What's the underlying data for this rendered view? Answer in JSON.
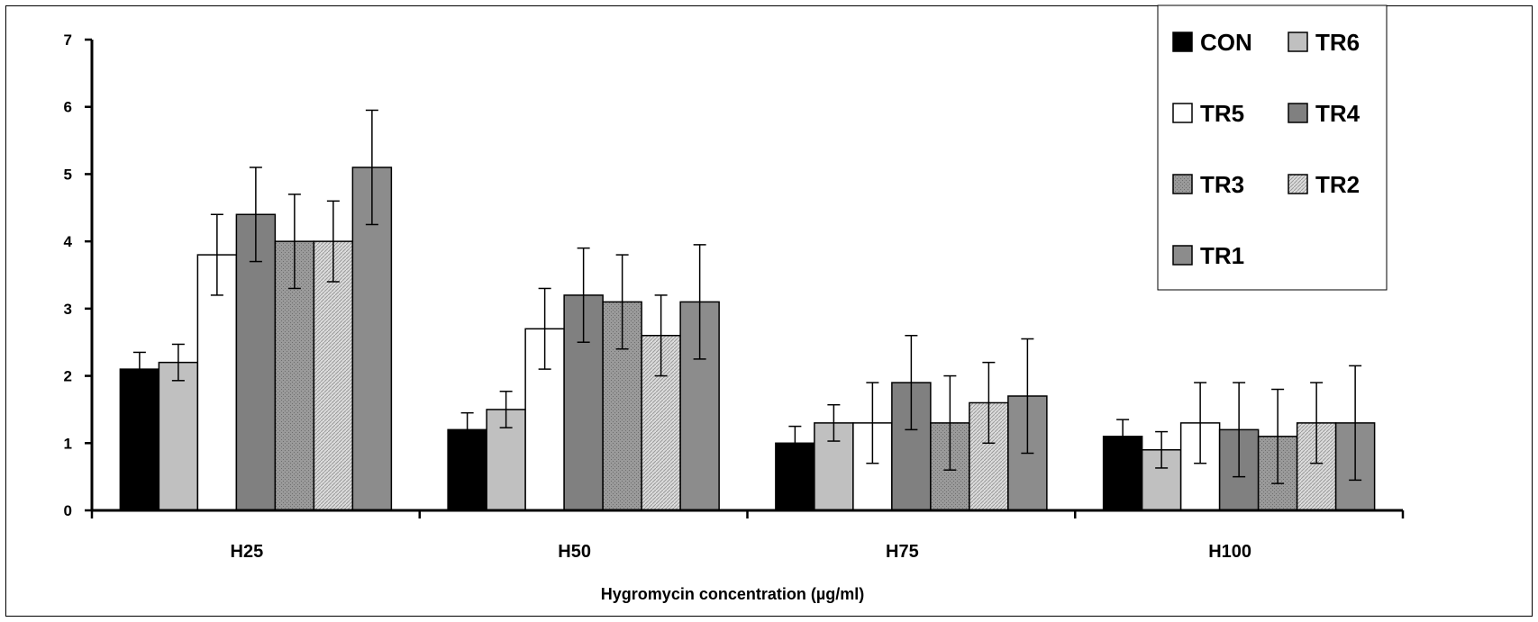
{
  "chart_data": {
    "type": "bar",
    "title": "",
    "xlabel": "Hygromycin concentration (µg/ml)",
    "ylabel": "",
    "ylim": [
      0,
      7
    ],
    "yticks": [
      "0",
      "1",
      "2",
      "3",
      "4",
      "5",
      "6",
      "7"
    ],
    "categories": [
      "H25",
      "H50",
      "H75",
      "H100"
    ],
    "legend_position": "top-right",
    "series": [
      {
        "name": "CON",
        "color": "#000000",
        "pattern": "solid",
        "values": [
          2.1,
          1.2,
          1.0,
          1.1
        ],
        "errors": [
          0.25,
          0.25,
          0.25,
          0.25
        ]
      },
      {
        "name": "TR6",
        "color": "#c0c0c0",
        "pattern": "solid",
        "values": [
          2.2,
          1.5,
          1.3,
          0.9
        ],
        "errors": [
          0.27,
          0.27,
          0.27,
          0.27
        ]
      },
      {
        "name": "TR5",
        "color": "#ffffff",
        "pattern": "solid",
        "values": [
          3.8,
          2.7,
          1.3,
          1.3
        ],
        "errors": [
          0.6,
          0.6,
          0.6,
          0.6
        ]
      },
      {
        "name": "TR4",
        "color": "#808080",
        "pattern": "solid",
        "values": [
          4.4,
          3.2,
          1.9,
          1.2
        ],
        "errors": [
          0.7,
          0.7,
          0.7,
          0.7
        ]
      },
      {
        "name": "TR3",
        "color": "#969696",
        "pattern": "dots",
        "values": [
          4.0,
          3.1,
          1.3,
          1.1
        ],
        "errors": [
          0.7,
          0.7,
          0.7,
          0.7
        ]
      },
      {
        "name": "TR2",
        "color": "#d4d4d4",
        "pattern": "hatch",
        "values": [
          4.0,
          2.6,
          1.6,
          1.3
        ],
        "errors": [
          0.6,
          0.6,
          0.6,
          0.6
        ]
      },
      {
        "name": "TR1",
        "color": "#8c8c8c",
        "pattern": "solid",
        "values": [
          5.1,
          3.1,
          1.7,
          1.3
        ],
        "errors": [
          0.85,
          0.85,
          0.85,
          0.85
        ]
      }
    ]
  }
}
